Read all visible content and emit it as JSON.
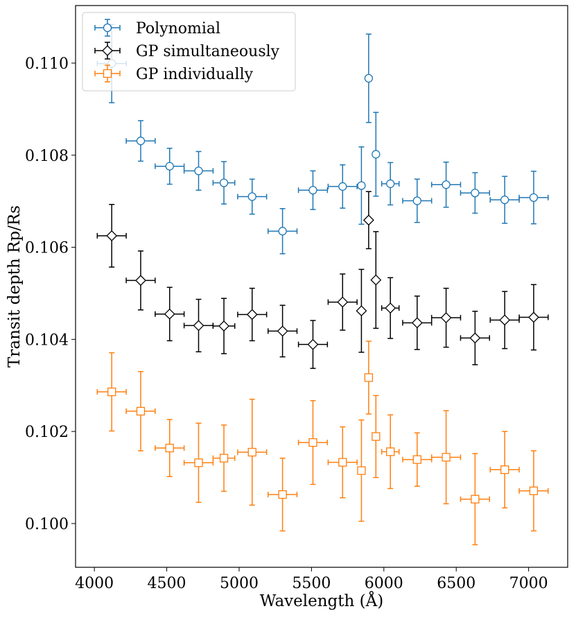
{
  "chart_data": {
    "type": "scatter",
    "title": "",
    "xlabel": "Wavelength (Å)",
    "ylabel": "Transit depth Rp/Rs",
    "xlim": [
      3870,
      7270
    ],
    "ylim": [
      0.09905,
      0.11125
    ],
    "xticks": [
      4000,
      4500,
      5000,
      5500,
      6000,
      6500,
      7000
    ],
    "xtick_labels": [
      "4000",
      "4500",
      "5000",
      "5500",
      "6000",
      "6500",
      "7000"
    ],
    "yticks": [
      0.1,
      0.102,
      0.104,
      0.106,
      0.108,
      0.11
    ],
    "ytick_labels": [
      "0.100",
      "0.102",
      "0.104",
      "0.106",
      "0.108",
      "0.110"
    ],
    "grid": false,
    "legend_position": "top-left",
    "series": [
      {
        "name": "Polynomial",
        "color": "#1f77b4",
        "marker": "circle",
        "points": [
          {
            "x": 4120,
            "xerr": 100,
            "y": 0.10999,
            "yerr": 0.00085
          },
          {
            "x": 4320,
            "xerr": 100,
            "y": 0.10831,
            "yerr": 0.00044
          },
          {
            "x": 4520,
            "xerr": 100,
            "y": 0.10776,
            "yerr": 0.00039
          },
          {
            "x": 4720,
            "xerr": 100,
            "y": 0.10766,
            "yerr": 0.00042
          },
          {
            "x": 4895,
            "xerr": 75,
            "y": 0.1074,
            "yerr": 0.00046
          },
          {
            "x": 5090,
            "xerr": 100,
            "y": 0.1071,
            "yerr": 0.00038
          },
          {
            "x": 5300,
            "xerr": 100,
            "y": 0.10635,
            "yerr": 0.00049
          },
          {
            "x": 5510,
            "xerr": 100,
            "y": 0.10724,
            "yerr": 0.00042
          },
          {
            "x": 5715,
            "xerr": 100,
            "y": 0.10732,
            "yerr": 0.00047
          },
          {
            "x": 5845,
            "xerr": 5,
            "y": 0.10734,
            "yerr": 0.00084
          },
          {
            "x": 5895,
            "xerr": 5,
            "y": 0.10967,
            "yerr": 0.00096
          },
          {
            "x": 5945,
            "xerr": 5,
            "y": 0.10802,
            "yerr": 0.00091
          },
          {
            "x": 6045,
            "xerr": 60,
            "y": 0.10738,
            "yerr": 0.00046
          },
          {
            "x": 6230,
            "xerr": 100,
            "y": 0.10701,
            "yerr": 0.00047
          },
          {
            "x": 6430,
            "xerr": 100,
            "y": 0.10736,
            "yerr": 0.00049
          },
          {
            "x": 6630,
            "xerr": 100,
            "y": 0.10718,
            "yerr": 0.00044
          },
          {
            "x": 6835,
            "xerr": 100,
            "y": 0.10703,
            "yerr": 0.00051
          },
          {
            "x": 7035,
            "xerr": 100,
            "y": 0.10708,
            "yerr": 0.00057
          }
        ]
      },
      {
        "name": "GP simultaneously",
        "color": "#000000",
        "marker": "diamond",
        "points": [
          {
            "x": 4120,
            "xerr": 100,
            "y": 0.10625,
            "yerr": 0.00068
          },
          {
            "x": 4320,
            "xerr": 100,
            "y": 0.10528,
            "yerr": 0.00064
          },
          {
            "x": 4520,
            "xerr": 100,
            "y": 0.10455,
            "yerr": 0.00058
          },
          {
            "x": 4720,
            "xerr": 100,
            "y": 0.1043,
            "yerr": 0.00057
          },
          {
            "x": 4895,
            "xerr": 75,
            "y": 0.10429,
            "yerr": 0.0006
          },
          {
            "x": 5090,
            "xerr": 100,
            "y": 0.10454,
            "yerr": 0.00057
          },
          {
            "x": 5300,
            "xerr": 100,
            "y": 0.10418,
            "yerr": 0.00056
          },
          {
            "x": 5510,
            "xerr": 100,
            "y": 0.10389,
            "yerr": 0.00052
          },
          {
            "x": 5715,
            "xerr": 100,
            "y": 0.10481,
            "yerr": 0.00061
          },
          {
            "x": 5845,
            "xerr": 5,
            "y": 0.10462,
            "yerr": 0.0009
          },
          {
            "x": 5895,
            "xerr": 5,
            "y": 0.10659,
            "yerr": 0.00062
          },
          {
            "x": 5945,
            "xerr": 5,
            "y": 0.10529,
            "yerr": 0.00105
          },
          {
            "x": 6045,
            "xerr": 60,
            "y": 0.10468,
            "yerr": 0.00066
          },
          {
            "x": 6230,
            "xerr": 100,
            "y": 0.10436,
            "yerr": 0.00058
          },
          {
            "x": 6430,
            "xerr": 100,
            "y": 0.10447,
            "yerr": 0.00064
          },
          {
            "x": 6630,
            "xerr": 100,
            "y": 0.10403,
            "yerr": 0.00058
          },
          {
            "x": 6835,
            "xerr": 100,
            "y": 0.10442,
            "yerr": 0.00062
          },
          {
            "x": 7035,
            "xerr": 100,
            "y": 0.10448,
            "yerr": 0.00071
          }
        ]
      },
      {
        "name": "GP individually",
        "color": "#ff7f0e",
        "marker": "square",
        "points": [
          {
            "x": 4120,
            "xerr": 100,
            "y": 0.10286,
            "yerr": 0.00085
          },
          {
            "x": 4320,
            "xerr": 100,
            "y": 0.10244,
            "yerr": 0.00086
          },
          {
            "x": 4520,
            "xerr": 100,
            "y": 0.10164,
            "yerr": 0.00062
          },
          {
            "x": 4720,
            "xerr": 100,
            "y": 0.10132,
            "yerr": 0.00086
          },
          {
            "x": 4895,
            "xerr": 75,
            "y": 0.10142,
            "yerr": 0.00072
          },
          {
            "x": 5090,
            "xerr": 100,
            "y": 0.10155,
            "yerr": 0.00115
          },
          {
            "x": 5300,
            "xerr": 100,
            "y": 0.10063,
            "yerr": 0.00079
          },
          {
            "x": 5510,
            "xerr": 100,
            "y": 0.10176,
            "yerr": 0.00091
          },
          {
            "x": 5715,
            "xerr": 100,
            "y": 0.10133,
            "yerr": 0.00077
          },
          {
            "x": 5845,
            "xerr": 5,
            "y": 0.10115,
            "yerr": 0.0011
          },
          {
            "x": 5895,
            "xerr": 5,
            "y": 0.10317,
            "yerr": 0.00079
          },
          {
            "x": 5945,
            "xerr": 5,
            "y": 0.10189,
            "yerr": 0.00089
          },
          {
            "x": 6045,
            "xerr": 60,
            "y": 0.10156,
            "yerr": 0.0008
          },
          {
            "x": 6230,
            "xerr": 100,
            "y": 0.10139,
            "yerr": 0.00058
          },
          {
            "x": 6430,
            "xerr": 100,
            "y": 0.10144,
            "yerr": 0.00101
          },
          {
            "x": 6630,
            "xerr": 100,
            "y": 0.10053,
            "yerr": 0.00099
          },
          {
            "x": 6835,
            "xerr": 100,
            "y": 0.10117,
            "yerr": 0.00083
          },
          {
            "x": 7035,
            "xerr": 100,
            "y": 0.10071,
            "yerr": 0.00087
          }
        ]
      }
    ]
  }
}
